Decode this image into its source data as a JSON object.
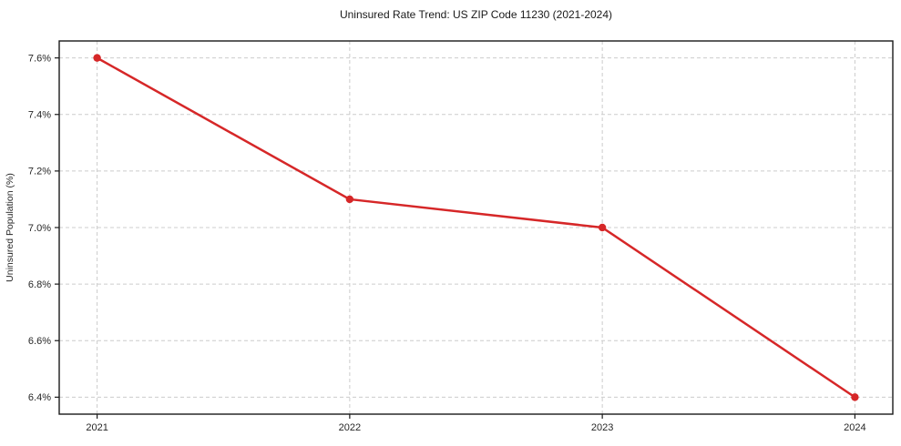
{
  "chart_data": {
    "type": "line",
    "title": "Uninsured Rate Trend: US ZIP Code 11230 (2021-2024)",
    "xlabel": "",
    "ylabel": "Uninsured Population (%)",
    "x": [
      2021,
      2022,
      2023,
      2024
    ],
    "values": [
      7.6,
      7.1,
      7.0,
      6.4
    ],
    "point_labels": [
      "2021: 7.6%",
      "2022: 7.1%",
      "2023: 7.0%",
      "2024: 6.4%"
    ],
    "xticks": [
      2021,
      2022,
      2023,
      2024
    ],
    "xtick_labels": [
      "2021",
      "2022",
      "2023",
      "2024"
    ],
    "yticks": [
      6.4,
      6.6,
      6.8,
      7.0,
      7.2,
      7.4,
      7.6
    ],
    "ytick_labels": [
      "6.4%",
      "6.6%",
      "6.8%",
      "7.0%",
      "7.2%",
      "7.4%",
      "7.6%"
    ],
    "xlim": [
      2020.85,
      2024.15
    ],
    "ylim": [
      6.34,
      7.66
    ],
    "grid": true,
    "grid_style": "dashed",
    "legend": "none",
    "colors": {
      "line": "#d62728",
      "marker": "#d62728",
      "grid": "#cccccc",
      "axis": "#1a1a1a",
      "text": "#262626",
      "background": "#ffffff"
    }
  }
}
